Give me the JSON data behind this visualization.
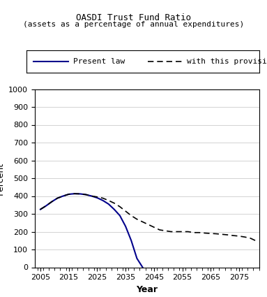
{
  "title": "OASDI Trust Fund Ratio",
  "subtitle": "(assets as a percentage of annual expenditures)",
  "xlabel": "Year",
  "ylabel": "Percent",
  "xlim": [
    2003,
    2082
  ],
  "ylim": [
    0,
    1000
  ],
  "yticks": [
    0,
    100,
    200,
    300,
    400,
    500,
    600,
    700,
    800,
    900,
    1000
  ],
  "xticks": [
    2005,
    2015,
    2025,
    2035,
    2045,
    2055,
    2065,
    2075
  ],
  "present_law_color": "#00008B",
  "provision_color": "#000000",
  "present_law": {
    "years": [
      2005,
      2007,
      2009,
      2011,
      2013,
      2015,
      2017,
      2019,
      2021,
      2023,
      2025,
      2027,
      2029,
      2031,
      2033,
      2035,
      2037,
      2039,
      2041
    ],
    "values": [
      325,
      345,
      368,
      388,
      400,
      410,
      413,
      412,
      408,
      400,
      390,
      375,
      355,
      325,
      290,
      230,
      150,
      50,
      0
    ]
  },
  "provision": {
    "years": [
      2005,
      2007,
      2009,
      2011,
      2013,
      2015,
      2017,
      2019,
      2021,
      2023,
      2025,
      2027,
      2029,
      2031,
      2033,
      2035,
      2037,
      2039,
      2041,
      2043,
      2045,
      2047,
      2049,
      2051,
      2053,
      2055,
      2057,
      2059,
      2061,
      2063,
      2065,
      2067,
      2069,
      2071,
      2073,
      2075,
      2077,
      2079,
      2081
    ],
    "values": [
      325,
      345,
      368,
      388,
      400,
      410,
      413,
      412,
      408,
      400,
      395,
      388,
      375,
      360,
      340,
      315,
      290,
      270,
      255,
      240,
      225,
      210,
      205,
      200,
      200,
      200,
      200,
      195,
      195,
      192,
      190,
      188,
      185,
      182,
      178,
      175,
      170,
      163,
      148
    ]
  },
  "legend_present_law": "Present law",
  "legend_provision": "with this provision",
  "title_fontsize": 9,
  "subtitle_fontsize": 8,
  "tick_fontsize": 8,
  "axis_label_fontsize": 9,
  "legend_fontsize": 8
}
